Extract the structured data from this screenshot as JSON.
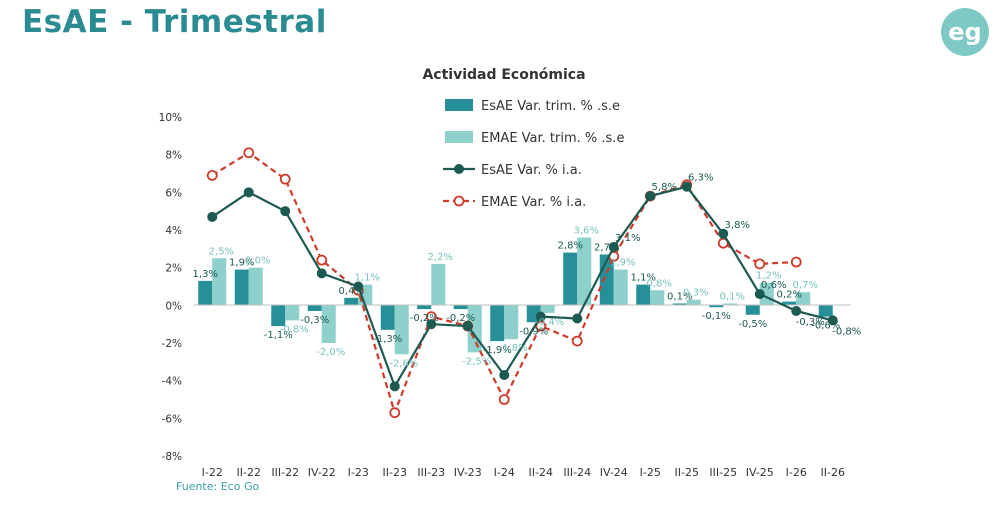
{
  "header": {
    "title": "EsAE - Trimestral",
    "logo_text": "eg",
    "source": "Fuente: Eco Go"
  },
  "colors": {
    "title": "#2a8b92",
    "logo_bg": "#7ec9c6",
    "esae_bar": "#268f98",
    "emae_bar": "#8ed1cc",
    "esae_line": "#1c5a52",
    "emae_line": "#d03a2a"
  },
  "chart_data": {
    "type": "bar",
    "title": "Actividad Económica",
    "categories": [
      "I-22",
      "II-22",
      "III-22",
      "IV-22",
      "I-23",
      "II-23",
      "III-23",
      "IV-23",
      "I-24",
      "II-24",
      "III-24",
      "IV-24",
      "I-25",
      "II-25",
      "III-25",
      "IV-25",
      "I-26",
      "II-26"
    ],
    "y_ticks": [
      "10%",
      "8%",
      "6%",
      "4%",
      "2%",
      "0%",
      "-2%",
      "-4%",
      "-6%",
      "-8%"
    ],
    "ylim": [
      -8,
      10
    ],
    "grid": false,
    "legend_position": "top-center",
    "series": [
      {
        "name": "EsAE Var. trim. % .s.e",
        "kind": "bar",
        "values": [
          1.3,
          1.9,
          -1.1,
          -0.3,
          0.4,
          -1.3,
          -0.2,
          -0.2,
          -1.9,
          -0.9,
          2.8,
          2.7,
          1.1,
          0.1,
          -0.1,
          -0.5,
          0.2,
          -0.6
        ],
        "labels": [
          "1,3%",
          "1,9%",
          "-1,1%",
          "-0,3%",
          "0,4%",
          "-1,3%",
          "-0,2%",
          "-0,2%",
          "-1,9%",
          "-0,9%",
          "2,8%",
          "2,7%",
          "1,1%",
          "0,1%",
          "-0,1%",
          "-0,5%",
          "0,2%",
          "-0,6%"
        ]
      },
      {
        "name": "EMAE Var. trim. % .s.e",
        "kind": "bar",
        "values": [
          2.5,
          2.0,
          -0.8,
          -2.0,
          1.1,
          -2.6,
          2.2,
          -2.5,
          -1.8,
          -0.4,
          3.6,
          1.9,
          0.8,
          0.3,
          0.1,
          1.2,
          0.7,
          null
        ],
        "labels": [
          "2,5%",
          "2,0%",
          "-0,8%",
          "-2,0%",
          "1,1%",
          "-2,6%",
          "2,2%",
          "-2,5%",
          "-1,8%",
          "-0,4%",
          "3,6%",
          "1,9%",
          "0,8%",
          "0,3%",
          "0,1%",
          "1,2%",
          "0,7%",
          ""
        ]
      },
      {
        "name": "EsAE Var. % i.a.",
        "kind": "line",
        "values": [
          4.7,
          6.0,
          5.0,
          1.7,
          1.0,
          -4.3,
          -1.0,
          -1.1,
          -3.7,
          -0.6,
          -0.7,
          3.1,
          5.8,
          6.3,
          3.8,
          0.6,
          -0.3,
          -0.8
        ],
        "labels": [
          "",
          "",
          "",
          "",
          "",
          "",
          "",
          "",
          "",
          "",
          "",
          "3,1%",
          "5,8%",
          "6,3%",
          "3,8%",
          "0,6%",
          "-0,3%",
          "-0,8%"
        ]
      },
      {
        "name": "EMAE Var. % i.a.",
        "kind": "line",
        "values": [
          6.9,
          8.1,
          6.7,
          2.4,
          0.8,
          -5.7,
          -0.6,
          -1.1,
          -5.0,
          -1.1,
          -1.9,
          2.6,
          5.8,
          6.4,
          3.3,
          2.2,
          2.3,
          null
        ],
        "labels": []
      }
    ]
  }
}
